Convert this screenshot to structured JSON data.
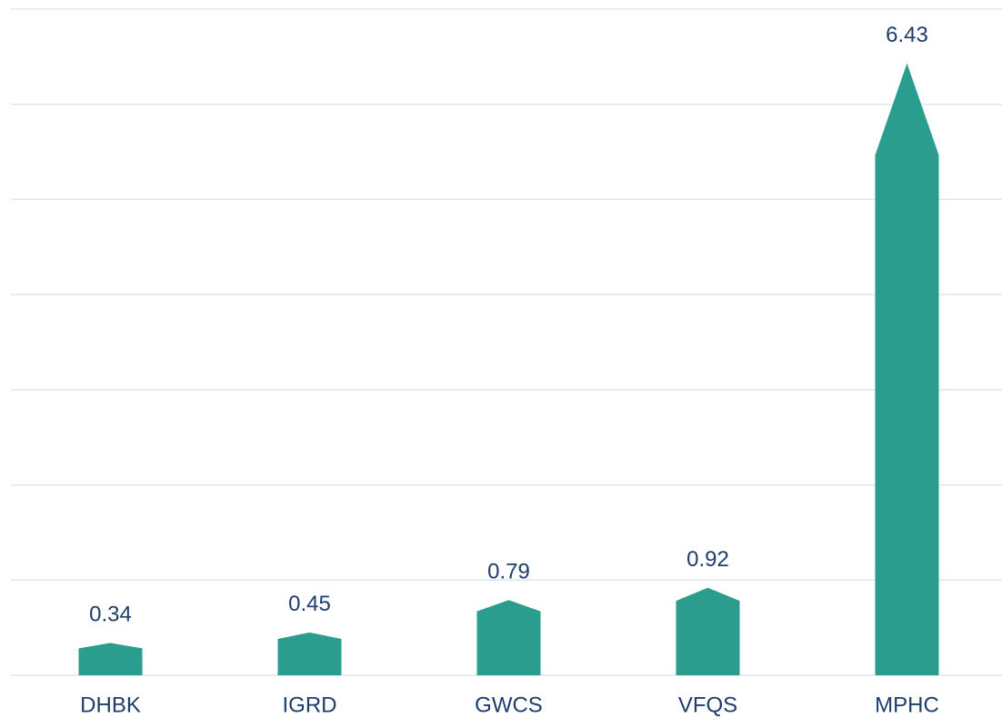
{
  "chart_data": {
    "type": "bar",
    "categories": [
      "DHBK",
      "IGRD",
      "GWCS",
      "VFQS",
      "MPHC"
    ],
    "values": [
      0.34,
      0.45,
      0.79,
      0.92,
      6.43
    ],
    "color": "#2a9d8f",
    "ylim": [
      0,
      7
    ],
    "yticks": [
      0,
      1,
      2,
      3,
      4,
      5,
      6,
      7
    ],
    "grid": true
  }
}
